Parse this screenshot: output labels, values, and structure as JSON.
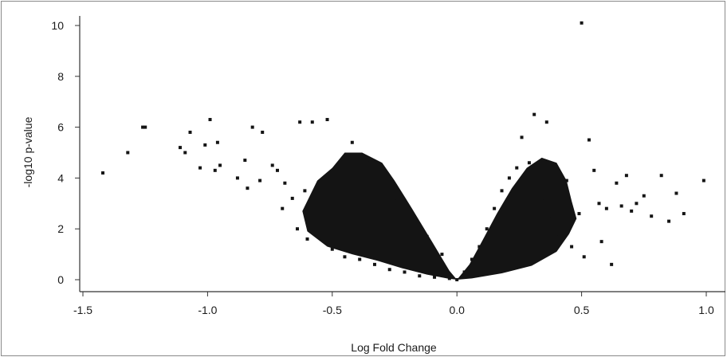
{
  "chart_data": {
    "type": "scatter",
    "title": "",
    "xlabel": "Log Fold Change",
    "ylabel": "-log10 p-value",
    "xlim": [
      -1.6,
      1.05
    ],
    "ylim": [
      -0.4,
      10.5
    ],
    "xticks": [
      -1.5,
      -1.0,
      -0.5,
      0.0,
      0.5,
      1.0
    ],
    "xtick_labels": [
      "-1.5",
      "-1.0",
      "-0.5",
      "0.0",
      "0.5",
      "1.0"
    ],
    "yticks": [
      0,
      2,
      4,
      6,
      8,
      10
    ],
    "ytick_labels": [
      "0",
      "2",
      "4",
      "6",
      "8",
      "10"
    ],
    "grid": false,
    "legend": "none",
    "marker_color": "#141414",
    "series": [
      {
        "x": [
          -1.42,
          -1.32,
          -1.26,
          -1.25,
          -1.11,
          -1.09,
          -1.07,
          -1.03,
          -1.01,
          -0.99,
          -0.96,
          -0.95,
          -0.97,
          -0.88,
          -0.85,
          -0.84,
          -0.82,
          -0.79,
          -0.78,
          -0.74,
          -0.72,
          -0.7,
          -0.69,
          -0.66,
          -0.64,
          -0.63,
          -0.61,
          -0.6,
          -0.58,
          -0.55,
          -0.52,
          -0.5,
          -0.48,
          -0.45,
          -0.42,
          -0.39,
          -0.36,
          -0.33,
          -0.3,
          -0.27,
          -0.24,
          -0.21,
          -0.18,
          -0.15,
          -0.12,
          -0.09,
          -0.06,
          -0.03,
          0.0,
          0.03,
          0.06,
          0.09,
          0.12,
          0.15,
          0.18,
          0.21,
          0.24,
          0.26,
          0.29,
          0.31,
          0.34,
          0.36,
          0.38,
          0.41,
          0.44,
          0.46,
          0.49,
          0.5,
          0.51,
          0.53,
          0.55,
          0.57,
          0.58,
          0.6,
          0.62,
          0.64,
          0.66,
          0.68,
          0.7,
          0.72,
          0.75,
          0.78,
          0.82,
          0.85,
          0.88,
          0.91,
          0.99
        ],
        "y": [
          4.2,
          5.0,
          6.0,
          6.0,
          5.2,
          5.0,
          5.8,
          4.4,
          5.3,
          6.3,
          5.4,
          4.5,
          4.3,
          4.0,
          4.7,
          3.6,
          6.0,
          3.9,
          5.8,
          4.5,
          4.3,
          2.8,
          3.8,
          3.2,
          2.0,
          6.2,
          3.5,
          1.6,
          6.2,
          2.7,
          6.3,
          1.2,
          4.2,
          0.9,
          5.4,
          0.8,
          4.6,
          0.6,
          3.9,
          0.4,
          3.2,
          0.3,
          2.4,
          0.15,
          1.7,
          0.1,
          1.0,
          0.05,
          0.0,
          0.3,
          0.8,
          1.3,
          2.0,
          2.8,
          3.5,
          4.0,
          4.4,
          5.6,
          4.6,
          6.5,
          3.1,
          6.2,
          2.4,
          1.8,
          3.9,
          1.3,
          2.6,
          10.1,
          0.9,
          5.5,
          4.3,
          3.0,
          1.5,
          2.8,
          0.6,
          3.8,
          2.9,
          4.1,
          2.7,
          3.0,
          3.3,
          2.5,
          4.1,
          2.3,
          3.4,
          2.6,
          3.9
        ]
      }
    ]
  }
}
